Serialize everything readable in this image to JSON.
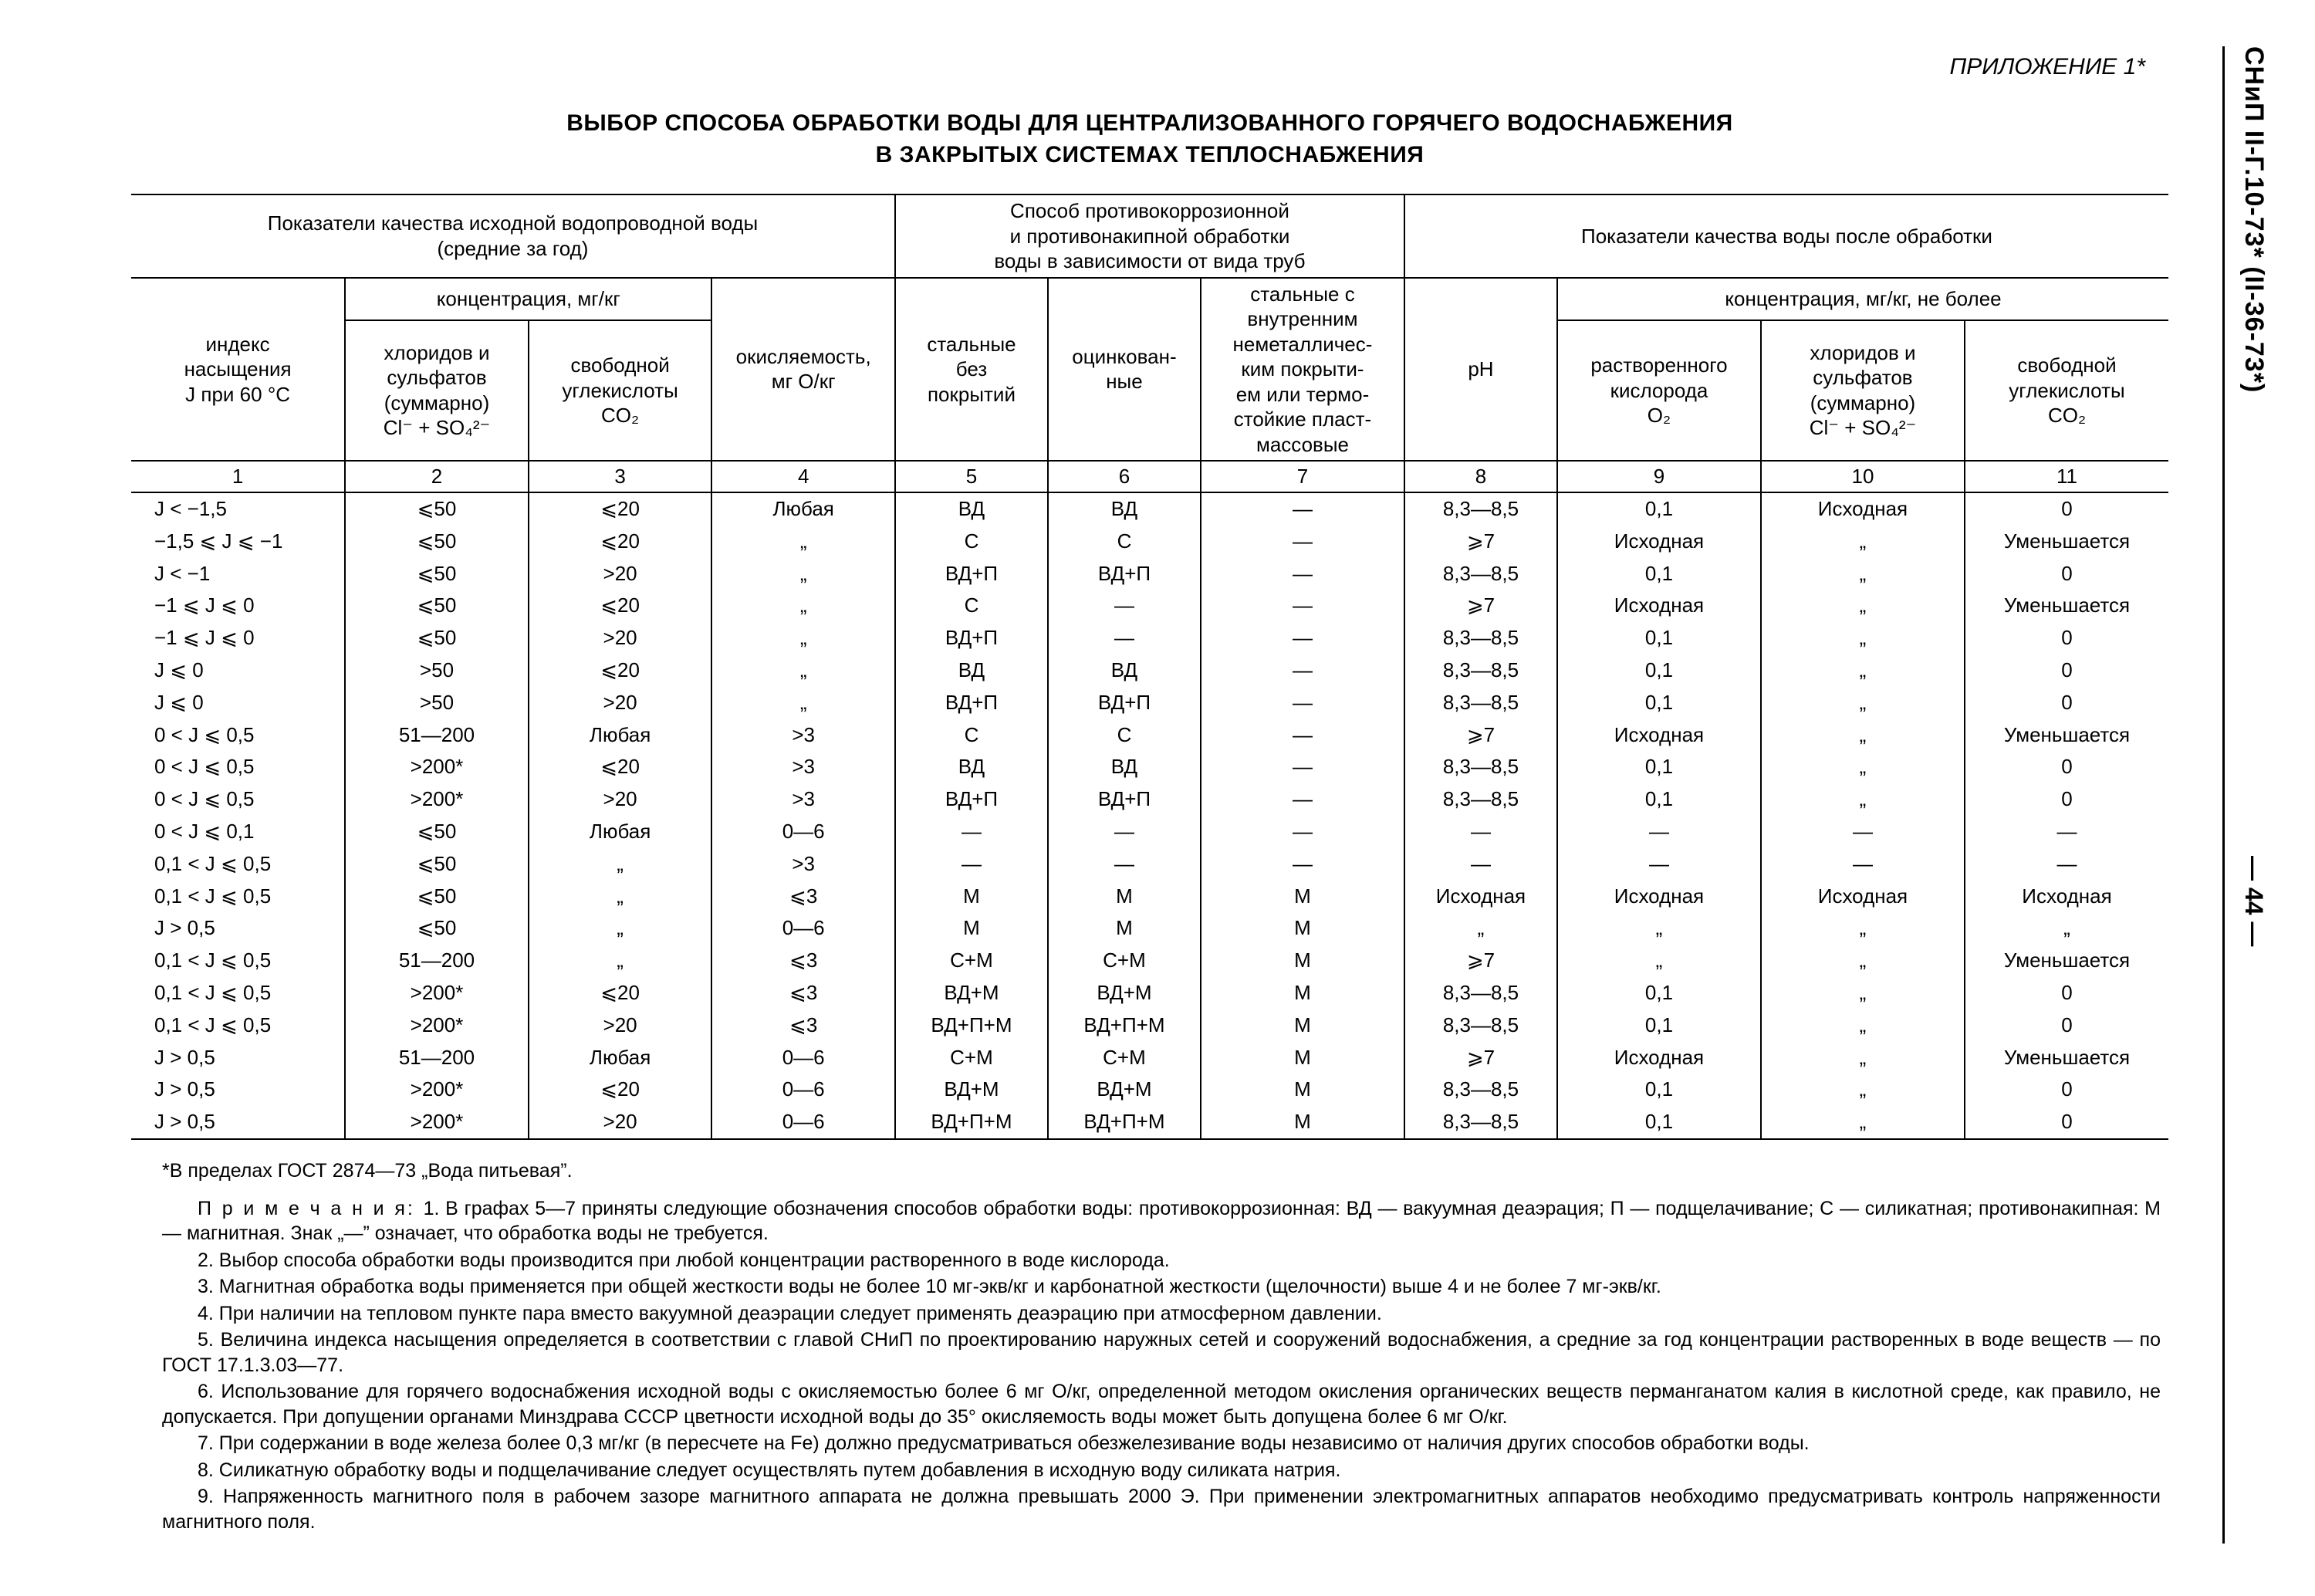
{
  "sidebar": {
    "doc_code": "СНиП II-Г.10-73* (II-36-73*)",
    "page_marker": "— 44 —"
  },
  "appendix_label": "ПРИЛОЖЕНИЕ 1*",
  "title_line1": "ВЫБОР СПОСОБА ОБРАБОТКИ ВОДЫ ДЛЯ ЦЕНТРАЛИЗОВАННОГО ГОРЯЧЕГО ВОДОСНАБЖЕНИЯ",
  "title_line2": "В ЗАКРЫТЫХ СИСТЕМАХ ТЕПЛОСНАБЖЕНИЯ",
  "headers": {
    "group1": "Показатели качества исходной водопроводной воды\n(средние за год)",
    "group2": "Способ противокоррозионной\nи противонакипной обработки\nводы в зависимости от вида труб",
    "group3": "Показатели качества воды после обработки",
    "conc_left": "концентрация, мг/кг",
    "conc_right": "концентрация, мг/кг, не более",
    "c1": "индекс\nнасыщения\nJ при 60 °С",
    "c2": "хлоридов и\nсульфатов\n(суммарно)\nCl⁻ + SO₄²⁻",
    "c3": "свободной\nуглекислоты\nCO₂",
    "c4": "окисляемость,\nмг О/кг",
    "c5": "стальные\nбез\nпокрытий",
    "c6": "оцинкован-\nные",
    "c7": "стальные с\nвнутренним\nнеметалличес-\nким покрыти-\nем или термо-\nстойкие пласт-\nмассовые",
    "c8": "pH",
    "c9": "растворенного\nкислорода\nO₂",
    "c10": "хлоридов и\nсульфатов\n(суммарно)\nCl⁻ + SO₄²⁻",
    "c11": "свободной\nуглекислоты\nCO₂"
  },
  "colnums": [
    "1",
    "2",
    "3",
    "4",
    "5",
    "6",
    "7",
    "8",
    "9",
    "10",
    "11"
  ],
  "rows": [
    [
      "J < −1,5",
      "⩽50",
      "⩽20",
      "Любая",
      "ВД",
      "ВД",
      "—",
      "8,3—8,5",
      "0,1",
      "Исходная",
      "0"
    ],
    [
      "−1,5 ⩽ J ⩽ −1",
      "⩽50",
      "⩽20",
      "„",
      "С",
      "С",
      "—",
      "⩾7",
      "Исходная",
      "„",
      "Уменьшается"
    ],
    [
      "J < −1",
      "⩽50",
      ">20",
      "„",
      "ВД+П",
      "ВД+П",
      "—",
      "8,3—8,5",
      "0,1",
      "„",
      "0"
    ],
    [
      "−1 ⩽ J ⩽ 0",
      "⩽50",
      "⩽20",
      "„",
      "С",
      "—",
      "—",
      "⩾7",
      "Исходная",
      "„",
      "Уменьшается"
    ],
    [
      "−1 ⩽ J ⩽ 0",
      "⩽50",
      ">20",
      "„",
      "ВД+П",
      "—",
      "—",
      "8,3—8,5",
      "0,1",
      "„",
      "0"
    ],
    [
      "J ⩽ 0",
      ">50",
      "⩽20",
      "„",
      "ВД",
      "ВД",
      "—",
      "8,3—8,5",
      "0,1",
      "„",
      "0"
    ],
    [
      "J ⩽ 0",
      ">50",
      ">20",
      "„",
      "ВД+П",
      "ВД+П",
      "—",
      "8,3—8,5",
      "0,1",
      "„",
      "0"
    ],
    [
      "0 < J ⩽ 0,5",
      "51—200",
      "Любая",
      ">3",
      "С",
      "С",
      "—",
      "⩾7",
      "Исходная",
      "„",
      "Уменьшается"
    ],
    [
      "0 < J ⩽ 0,5",
      ">200*",
      "⩽20",
      ">3",
      "ВД",
      "ВД",
      "—",
      "8,3—8,5",
      "0,1",
      "„",
      "0"
    ],
    [
      "0 < J ⩽ 0,5",
      ">200*",
      ">20",
      ">3",
      "ВД+П",
      "ВД+П",
      "—",
      "8,3—8,5",
      "0,1",
      "„",
      "0"
    ],
    [
      "0 < J ⩽ 0,1",
      "⩽50",
      "Любая",
      "0—6",
      "—",
      "—",
      "—",
      "—",
      "—",
      "—",
      "—"
    ],
    [
      "0,1 < J ⩽ 0,5",
      "⩽50",
      "„",
      ">3",
      "—",
      "—",
      "—",
      "—",
      "—",
      "—",
      "—"
    ],
    [
      "0,1 < J ⩽ 0,5",
      "⩽50",
      "„",
      "⩽3",
      "М",
      "М",
      "М",
      "Исходная",
      "Исходная",
      "Исходная",
      "Исходная"
    ],
    [
      "J > 0,5",
      "⩽50",
      "„",
      "0—6",
      "М",
      "М",
      "М",
      "„",
      "„",
      "„",
      "„"
    ],
    [
      "0,1 < J ⩽ 0,5",
      "51—200",
      "„",
      "⩽3",
      "С+М",
      "С+М",
      "М",
      "⩾7",
      "„",
      "„",
      "Уменьшается"
    ],
    [
      "0,1 < J ⩽ 0,5",
      ">200*",
      "⩽20",
      "⩽3",
      "ВД+М",
      "ВД+М",
      "М",
      "8,3—8,5",
      "0,1",
      "„",
      "0"
    ],
    [
      "0,1 < J ⩽ 0,5",
      ">200*",
      ">20",
      "⩽3",
      "ВД+П+М",
      "ВД+П+М",
      "М",
      "8,3—8,5",
      "0,1",
      "„",
      "0"
    ],
    [
      "J > 0,5",
      "51—200",
      "Любая",
      "0—6",
      "С+М",
      "С+М",
      "М",
      "⩾7",
      "Исходная",
      "„",
      "Уменьшается"
    ],
    [
      "J > 0,5",
      ">200*",
      "⩽20",
      "0—6",
      "ВД+М",
      "ВД+М",
      "М",
      "8,3—8,5",
      "0,1",
      "„",
      "0"
    ],
    [
      "J > 0,5",
      ">200*",
      ">20",
      "0—6",
      "ВД+П+М",
      "ВД+П+М",
      "М",
      "8,3—8,5",
      "0,1",
      "„",
      "0"
    ]
  ],
  "footnote": "*В пределах ГОСТ 2874—73 „Вода питьевая”.",
  "notes_label": "П р и м е ч а н и я:",
  "notes": [
    "1. В графах 5—7 приняты следующие обозначения способов обработки воды: противокоррозионная: ВД — вакуумная деаэрация; П — подщелачивание; С — силикатная; противонакипная: М — магнитная. Знак „—” означает, что обработка воды не требуется.",
    "2. Выбор способа обработки воды производится при любой концентрации растворенного в воде кислорода.",
    "3. Магнитная обработка воды применяется при общей жесткости воды не более 10 мг-экв/кг и карбонатной жесткости (щелочности) выше 4 и не более 7 мг-экв/кг.",
    "4. При наличии на тепловом пункте пара вместо вакуумной деаэрации следует применять деаэрацию при атмосферном давлении.",
    "5. Величина индекса насыщения определяется в соответствии с главой СНиП по проектированию наружных сетей и сооружений водоснабжения, а средние за год концентрации растворенных в воде веществ — по ГОСТ 17.1.3.03—77.",
    "6. Использование для горячего водоснабжения исходной воды с окисляемостью более 6 мг О/кг, определенной методом окисления органических веществ перманганатом калия в кислотной среде, как правило, не допускается. При допущении органами Минздрава СССР цветности исходной воды до 35° окисляемость воды может быть допущена более 6 мг О/кг.",
    "7. При содержании в воде железа более 0,3 мг/кг (в пересчете на Fе) должно предусматриваться обезжелезивание воды независимо от наличия других способов обработки воды.",
    "8. Силикатную обработку воды и подщелачивание следует осуществлять путем добавления в исходную воду силиката натрия.",
    "9. Напряженность магнитного поля в рабочем зазоре магнитного аппарата не должна превышать 2000 Э. При применении электромагнитных аппаратов необходимо предусматривать контроль напряженности магнитного поля."
  ]
}
